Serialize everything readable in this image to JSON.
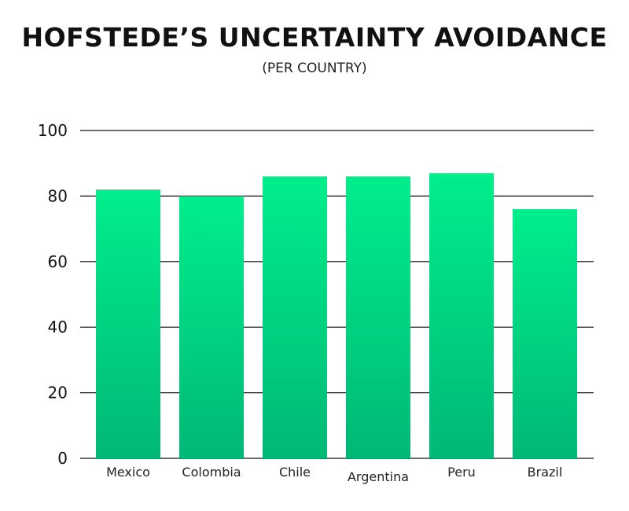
{
  "chart_data": {
    "type": "bar",
    "title": "HOFSTEDE’S UNCERTAINTY AVOIDANCE",
    "subtitle": "(PER COUNTRY)",
    "categories": [
      "Mexico",
      "Colombia",
      "Chile",
      "Argentina",
      "Peru",
      "Brazil"
    ],
    "values": [
      82,
      80,
      86,
      86,
      87,
      76
    ],
    "ylim": [
      0,
      100
    ],
    "yticks": [
      0,
      20,
      40,
      60,
      80,
      100
    ],
    "grid": true,
    "legend": "none",
    "colors": {
      "bar_top": "#00ee8c",
      "bar_bottom": "#00b876",
      "grid": "#111111"
    }
  }
}
